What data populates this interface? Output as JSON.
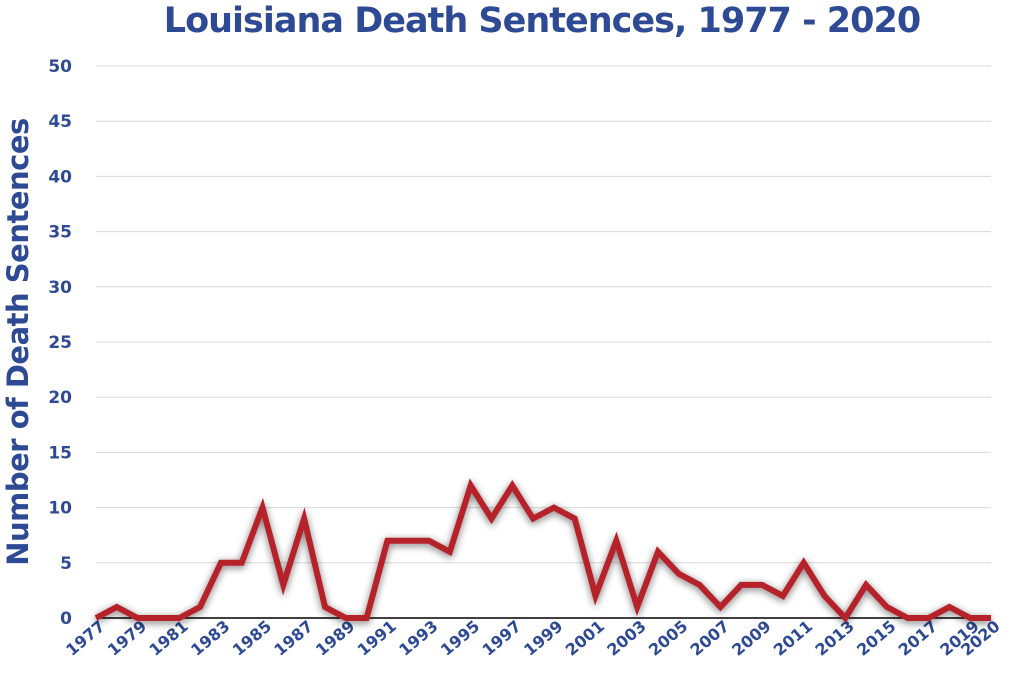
{
  "colors": {
    "text": "#2e4a94",
    "line": "#b5222c",
    "grid": "#d9d9d9",
    "axis": "#000000"
  },
  "chart_data": {
    "type": "line",
    "title": "Louisiana Death Sentences, 1977 - 2020",
    "xlabel": "",
    "ylabel": "Number of Death Sentences",
    "ylim": [
      0,
      50
    ],
    "yticks": [
      0,
      5,
      10,
      15,
      20,
      25,
      30,
      35,
      40,
      45,
      50
    ],
    "grid": true,
    "x": [
      1977,
      1978,
      1979,
      1980,
      1981,
      1982,
      1983,
      1984,
      1985,
      1986,
      1987,
      1988,
      1989,
      1990,
      1991,
      1992,
      1993,
      1994,
      1995,
      1996,
      1997,
      1998,
      1999,
      2000,
      2001,
      2002,
      2003,
      2004,
      2005,
      2006,
      2007,
      2008,
      2009,
      2010,
      2011,
      2012,
      2013,
      2014,
      2015,
      2016,
      2017,
      2018,
      2019,
      2020
    ],
    "xtick_labels": [
      "1977",
      "1979",
      "1981",
      "1983",
      "1985",
      "1987",
      "1989",
      "1991",
      "1993",
      "1995",
      "1997",
      "1999",
      "2001",
      "2003",
      "2005",
      "2007",
      "2009",
      "2011",
      "2013",
      "2015",
      "2017",
      "2019",
      "2020"
    ],
    "series": [
      {
        "values": [
          0,
          1,
          0,
          0,
          0,
          1,
          5,
          5,
          10,
          3,
          9,
          1,
          0,
          0,
          7,
          7,
          7,
          6,
          12,
          9,
          12,
          9,
          10,
          9,
          2,
          7,
          1,
          6,
          4,
          3,
          1,
          3,
          3,
          2,
          5,
          2,
          0,
          3,
          1,
          0,
          0,
          1,
          0,
          0
        ]
      }
    ]
  }
}
